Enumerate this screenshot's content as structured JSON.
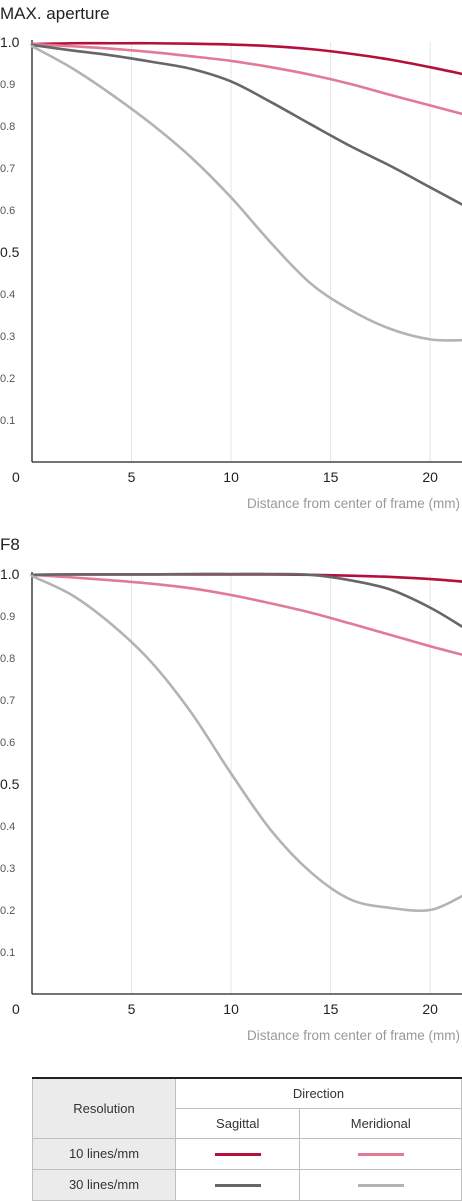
{
  "chart_data": [
    {
      "type": "line",
      "title": "MAX. aperture",
      "xlabel": "Distance from center of frame (mm)",
      "ylabel": "",
      "xlim": [
        0,
        21.6
      ],
      "ylim": [
        0,
        1.0
      ],
      "x_ticks": [
        5,
        10,
        15,
        20
      ],
      "y_ticks": [
        0.1,
        0.2,
        0.3,
        0.4,
        0.5,
        0.6,
        0.7,
        0.8,
        0.9,
        1.0
      ],
      "origin_label": "0",
      "grid": true,
      "series": [
        {
          "name": "10 lines/mm Sagittal",
          "color": "#b5103c",
          "x": [
            0,
            2,
            4,
            6,
            8,
            10,
            12,
            14,
            16,
            18,
            20,
            21.6
          ],
          "y": [
            0.995,
            0.997,
            0.997,
            0.997,
            0.996,
            0.994,
            0.99,
            0.983,
            0.972,
            0.958,
            0.94,
            0.924
          ]
        },
        {
          "name": "10 lines/mm Meridional",
          "color": "#e27a96",
          "x": [
            0,
            2,
            4,
            6,
            8,
            10,
            12,
            14,
            16,
            18,
            20,
            21.6
          ],
          "y": [
            0.995,
            0.99,
            0.984,
            0.976,
            0.966,
            0.955,
            0.94,
            0.922,
            0.9,
            0.874,
            0.849,
            0.829
          ]
        },
        {
          "name": "30 lines/mm Sagittal",
          "color": "#676767",
          "x": [
            0,
            2,
            4,
            6,
            8,
            10,
            12,
            14,
            16,
            18,
            20,
            21.6
          ],
          "y": [
            0.993,
            0.98,
            0.968,
            0.953,
            0.936,
            0.906,
            0.857,
            0.804,
            0.752,
            0.705,
            0.654,
            0.613
          ]
        },
        {
          "name": "30 lines/mm Meridional",
          "color": "#b3b3b3",
          "x": [
            0,
            2,
            4,
            6,
            8,
            10,
            12,
            14,
            16,
            18,
            20,
            21.6
          ],
          "y": [
            0.99,
            0.938,
            0.875,
            0.805,
            0.725,
            0.63,
            0.522,
            0.425,
            0.362,
            0.317,
            0.292,
            0.29
          ]
        }
      ]
    },
    {
      "type": "line",
      "title": "F8",
      "xlabel": "Distance from center of frame (mm)",
      "ylabel": "",
      "xlim": [
        0,
        21.6
      ],
      "ylim": [
        0,
        1.0
      ],
      "x_ticks": [
        5,
        10,
        15,
        20
      ],
      "y_ticks": [
        0.1,
        0.2,
        0.3,
        0.4,
        0.5,
        0.6,
        0.7,
        0.8,
        0.9,
        1.0
      ],
      "origin_label": "0",
      "grid": true,
      "series": [
        {
          "name": "10 lines/mm Sagittal",
          "color": "#b5103c",
          "x": [
            0,
            2,
            4,
            6,
            8,
            10,
            12,
            14,
            16,
            18,
            20,
            21.6
          ],
          "y": [
            0.998,
            0.999,
            0.999,
            0.999,
            0.999,
            0.999,
            0.999,
            0.998,
            0.996,
            0.993,
            0.988,
            0.982
          ]
        },
        {
          "name": "10 lines/mm Meridional",
          "color": "#e27a96",
          "x": [
            0,
            2,
            4,
            6,
            8,
            10,
            12,
            14,
            16,
            18,
            20,
            21.6
          ],
          "y": [
            0.998,
            0.992,
            0.985,
            0.977,
            0.966,
            0.95,
            0.93,
            0.908,
            0.882,
            0.855,
            0.828,
            0.808
          ]
        },
        {
          "name": "30 lines/mm Sagittal",
          "color": "#676767",
          "x": [
            0,
            2,
            4,
            6,
            8,
            10,
            12,
            14,
            16,
            18,
            20,
            21.6
          ],
          "y": [
            0.998,
            0.999,
            0.999,
            0.999,
            1.0,
            1.0,
            1.0,
            0.998,
            0.985,
            0.963,
            0.92,
            0.875
          ]
        },
        {
          "name": "30 lines/mm Meridional",
          "color": "#b3b3b3",
          "x": [
            0,
            2,
            4,
            6,
            8,
            10,
            12,
            14,
            16,
            18,
            20,
            21.6
          ],
          "y": [
            0.995,
            0.95,
            0.88,
            0.79,
            0.67,
            0.525,
            0.39,
            0.29,
            0.225,
            0.205,
            0.2,
            0.233
          ]
        }
      ]
    }
  ],
  "legend": {
    "resolution_label": "Resolution",
    "direction_label": "Direction",
    "sagittal_label": "Sagittal",
    "meridional_label": "Meridional",
    "rows": [
      {
        "label": "10 lines/mm",
        "sagittal_color": "#b5103c",
        "meridional_color": "#e27a96"
      },
      {
        "label": "30 lines/mm",
        "sagittal_color": "#676767",
        "meridional_color": "#b3b3b3"
      }
    ]
  }
}
